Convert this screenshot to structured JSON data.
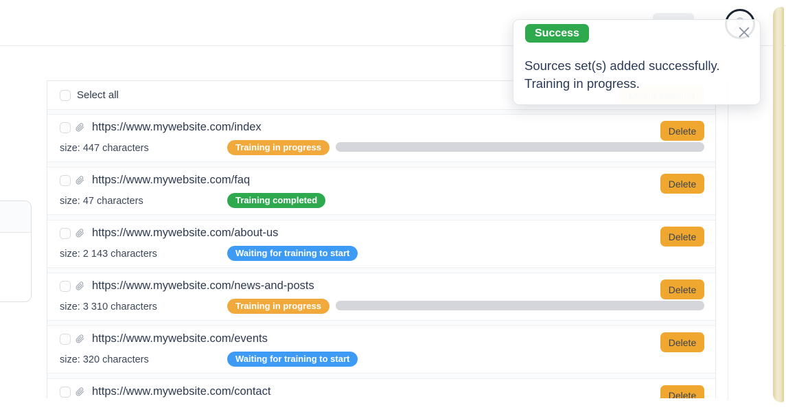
{
  "toast": {
    "badge_label": "Success",
    "message_line1": "Sources set(s) added successfully.",
    "message_line2": "Training in progress.",
    "close_icon": "x-icon"
  },
  "list_header": {
    "select_all_label": "Select all",
    "delete_selected_label": "Delete selected"
  },
  "delete_label": "Delete",
  "icons": {
    "paperclip": "paperclip-icon",
    "avatar": "user-avatar-icon",
    "close": "x-icon"
  },
  "colors": {
    "accent_orange": "#F2A93B",
    "status_green": "#2EA94E",
    "status_blue": "#3D9BF5",
    "delete_button": "#F0A72F",
    "progress_gray": "#d4d6db",
    "toast_badge_green": "#2EA94E",
    "edge_strip_tan": "#e9e0b4"
  },
  "sources": [
    {
      "url": "https://www.mywebsite.com/index",
      "size_text": "size: 447 characters",
      "status": "Training in progress",
      "status_color": "orange",
      "show_progress": true
    },
    {
      "url": "https://www.mywebsite.com/faq",
      "size_text": "size: 47 characters",
      "status": "Training completed",
      "status_color": "green",
      "show_progress": false
    },
    {
      "url": "https://www.mywebsite.com/about-us",
      "size_text": "size: 2 143 characters",
      "status": "Waiting for training to start",
      "status_color": "blue",
      "show_progress": false
    },
    {
      "url": "https://www.mywebsite.com/news-and-posts",
      "size_text": "size: 3 310 characters",
      "status": "Training in progress",
      "status_color": "orange",
      "show_progress": true
    },
    {
      "url": "https://www.mywebsite.com/events",
      "size_text": "size: 320 characters",
      "status": "Waiting for training to start",
      "status_color": "blue",
      "show_progress": false
    },
    {
      "url": "https://www.mywebsite.com/contact",
      "size_text": null,
      "status": null,
      "status_color": null,
      "show_progress": false
    }
  ]
}
